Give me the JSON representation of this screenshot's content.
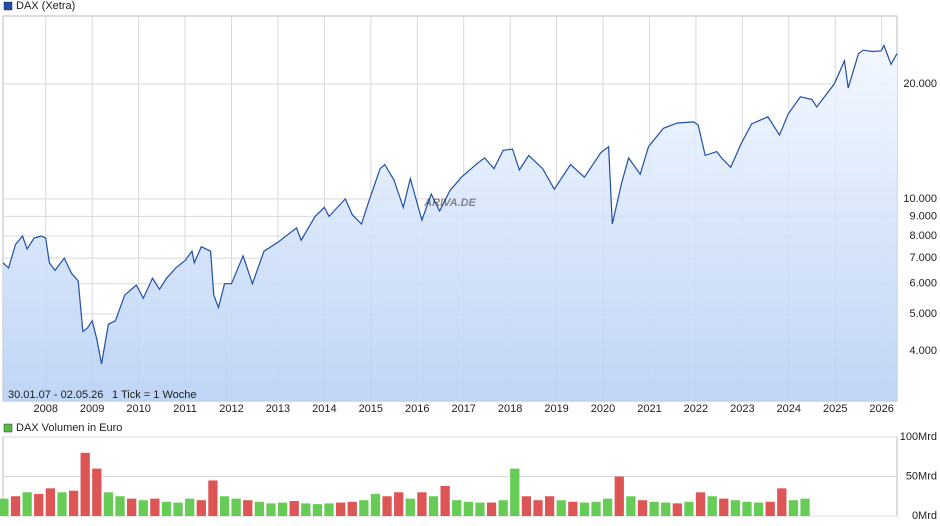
{
  "chart_data": [
    {
      "type": "line",
      "log_scale": true,
      "grid": true,
      "watermark": "ARIVA.DE",
      "annotations": [
        "30.01.07 - 02.05.26",
        "1 Tick = 1 Woche"
      ],
      "x": [
        2007.08,
        2007.2,
        2007.35,
        2007.5,
        2007.6,
        2007.75,
        2007.9,
        2008.0,
        2008.08,
        2008.2,
        2008.4,
        2008.55,
        2008.7,
        2008.8,
        2008.9,
        2009.0,
        2009.1,
        2009.2,
        2009.35,
        2009.5,
        2009.7,
        2009.95,
        2010.1,
        2010.3,
        2010.45,
        2010.6,
        2010.8,
        2011.0,
        2011.15,
        2011.2,
        2011.35,
        2011.55,
        2011.62,
        2011.72,
        2011.85,
        2012.0,
        2012.25,
        2012.45,
        2012.7,
        2013.0,
        2013.4,
        2013.5,
        2013.8,
        2014.0,
        2014.1,
        2014.45,
        2014.6,
        2014.8,
        2014.95,
        2015.2,
        2015.3,
        2015.5,
        2015.7,
        2015.85,
        2016.1,
        2016.3,
        2016.48,
        2016.7,
        2016.95,
        2017.3,
        2017.45,
        2017.65,
        2017.85,
        2018.05,
        2018.2,
        2018.4,
        2018.7,
        2018.95,
        2019.3,
        2019.6,
        2019.95,
        2020.12,
        2020.2,
        2020.4,
        2020.55,
        2020.8,
        2020.98,
        2021.3,
        2021.6,
        2021.95,
        2022.05,
        2022.2,
        2022.45,
        2022.55,
        2022.75,
        2022.98,
        2023.2,
        2023.55,
        2023.8,
        2023.99,
        2024.25,
        2024.5,
        2024.6,
        2024.98,
        2025.2,
        2025.28,
        2025.5,
        2025.6,
        2025.8,
        2025.99,
        2026.05,
        2026.2,
        2026.33
      ],
      "series": [
        {
          "name": "DAX (Xetra)",
          "color": "#1f4fa8",
          "values": [
            6800,
            6600,
            7600,
            8000,
            7400,
            7900,
            8000,
            7900,
            6800,
            6500,
            7000,
            6400,
            6100,
            4500,
            4600,
            4800,
            4300,
            3700,
            4700,
            4800,
            5600,
            5950,
            5500,
            6200,
            5800,
            6200,
            6600,
            6900,
            7300,
            6800,
            7500,
            7300,
            5600,
            5200,
            6000,
            6000,
            7100,
            6000,
            7300,
            7700,
            8400,
            7800,
            9000,
            9500,
            9000,
            10000,
            9100,
            8600,
            9800,
            12000,
            12300,
            11200,
            9500,
            11300,
            8800,
            10300,
            9300,
            10500,
            11400,
            12400,
            12800,
            12000,
            13400,
            13500,
            11900,
            13000,
            12000,
            10600,
            12300,
            11400,
            13200,
            13700,
            8600,
            11000,
            12800,
            11600,
            13700,
            15300,
            15800,
            15900,
            15600,
            13000,
            13300,
            12800,
            12100,
            14000,
            15700,
            16400,
            14700,
            16700,
            18500,
            18200,
            17400,
            20000,
            23000,
            19500,
            24000,
            24500,
            24300,
            24400,
            25200,
            22500,
            24000
          ]
        }
      ],
      "xlim": [
        2007.08,
        2026.33
      ],
      "xticks": [
        2008,
        2009,
        2010,
        2011,
        2012,
        2013,
        2014,
        2015,
        2016,
        2017,
        2018,
        2019,
        2020,
        2021,
        2022,
        2023,
        2024,
        2025,
        2026
      ],
      "ylim": [
        2960,
        30100
      ],
      "yticks": [
        {
          "value": 4000,
          "label": "4.000"
        },
        {
          "value": 5000,
          "label": "5.000"
        },
        {
          "value": 6000,
          "label": "6.000"
        },
        {
          "value": 7000,
          "label": "7.000"
        },
        {
          "value": 8000,
          "label": "8.000"
        },
        {
          "value": 9000,
          "label": "9.000"
        },
        {
          "value": 10000,
          "label": "10.000"
        },
        {
          "value": 20000,
          "label": "20.000"
        }
      ]
    },
    {
      "type": "bar",
      "grid": true,
      "x": [
        2007.1,
        2007.35,
        2007.6,
        2007.85,
        2008.1,
        2008.35,
        2008.6,
        2008.85,
        2009.1,
        2009.35,
        2009.6,
        2009.85,
        2010.1,
        2010.35,
        2010.6,
        2010.85,
        2011.1,
        2011.35,
        2011.6,
        2011.85,
        2012.1,
        2012.35,
        2012.6,
        2012.85,
        2013.1,
        2013.35,
        2013.6,
        2013.85,
        2014.1,
        2014.35,
        2014.6,
        2014.85,
        2015.1,
        2015.35,
        2015.6,
        2015.85,
        2016.1,
        2016.35,
        2016.6,
        2016.85,
        2017.1,
        2017.35,
        2017.6,
        2017.85,
        2018.1,
        2018.35,
        2018.6,
        2018.85,
        2019.1,
        2019.35,
        2019.6,
        2019.85,
        2020.1,
        2020.35,
        2020.6,
        2020.85,
        2021.1,
        2021.35,
        2021.6,
        2021.85,
        2022.1,
        2022.35,
        2022.6,
        2022.85,
        2023.1,
        2023.35,
        2023.6,
        2023.85,
        2024.1,
        2024.35
      ],
      "series": [
        {
          "name": "DAX Volumen in Euro",
          "color": "#55bb44",
          "values": [
            22,
            25,
            30,
            28,
            35,
            30,
            32,
            80,
            60,
            30,
            25,
            22,
            20,
            22,
            18,
            17,
            22,
            20,
            45,
            25,
            22,
            20,
            18,
            16,
            17,
            19,
            16,
            15,
            16,
            17,
            18,
            20,
            28,
            25,
            30,
            22,
            30,
            25,
            38,
            20,
            18,
            17,
            17,
            20,
            60,
            25,
            20,
            25,
            20,
            18,
            17,
            18,
            22,
            50,
            25,
            20,
            18,
            17,
            16,
            18,
            30,
            25,
            22,
            20,
            18,
            17,
            18,
            35,
            20,
            22
          ],
          "colors": [
            "#66cc55",
            "#dd5555",
            "#66cc55",
            "#dd5555",
            "#dd5555",
            "#66cc55",
            "#dd5555",
            "#dd5555",
            "#dd5555",
            "#66cc55",
            "#66cc55",
            "#dd5555",
            "#66cc55",
            "#dd5555",
            "#66cc55",
            "#66cc55",
            "#66cc55",
            "#dd5555",
            "#dd5555",
            "#66cc55",
            "#66cc55",
            "#dd5555",
            "#66cc55",
            "#66cc55",
            "#66cc55",
            "#dd5555",
            "#66cc55",
            "#66cc55",
            "#66cc55",
            "#dd5555",
            "#dd5555",
            "#66cc55",
            "#66cc55",
            "#dd5555",
            "#dd5555",
            "#66cc55",
            "#dd5555",
            "#66cc55",
            "#dd5555",
            "#66cc55",
            "#66cc55",
            "#66cc55",
            "#dd5555",
            "#66cc55",
            "#66cc55",
            "#dd5555",
            "#dd5555",
            "#dd5555",
            "#66cc55",
            "#dd5555",
            "#66cc55",
            "#66cc55",
            "#66cc55",
            "#dd5555",
            "#66cc55",
            "#dd5555",
            "#66cc55",
            "#66cc55",
            "#dd5555",
            "#66cc55",
            "#dd5555",
            "#66cc55",
            "#dd5555",
            "#66cc55",
            "#66cc55",
            "#66cc55",
            "#dd5555",
            "#dd5555",
            "#66cc55",
            "#66cc55"
          ]
        }
      ],
      "xlim": [
        2007.08,
        2026.33
      ],
      "ylim": [
        0,
        100
      ],
      "yticks": [
        {
          "value": 0,
          "label": "0Mrd"
        },
        {
          "value": 50,
          "label": "50Mrd"
        },
        {
          "value": 100,
          "label": "100Mrd"
        }
      ]
    }
  ]
}
